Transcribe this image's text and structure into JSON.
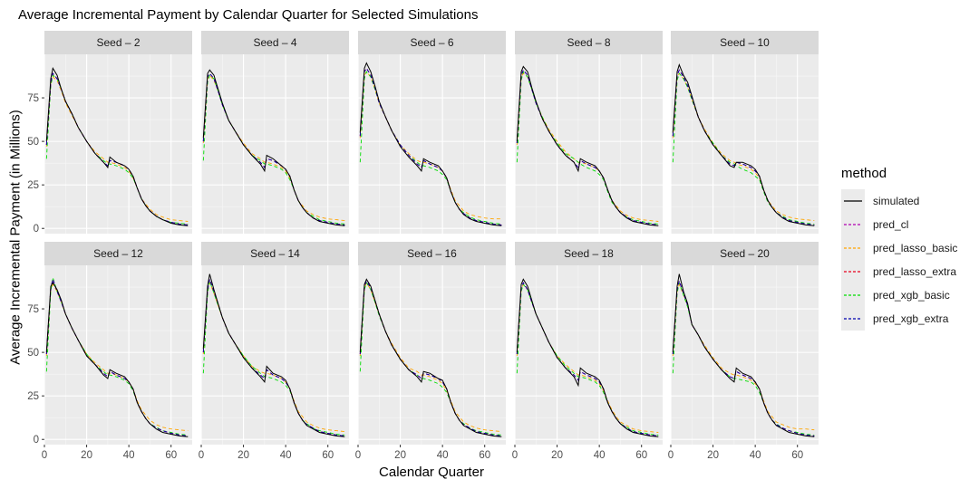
{
  "chart_data": {
    "type": "line",
    "title": "Average Incremental Payment by Calendar Quarter for Selected Simulations",
    "xlabel": "Calendar Quarter",
    "ylabel": "Average Incremental Payment (in Millions)",
    "xlim": [
      0,
      70
    ],
    "ylim": [
      -3,
      100
    ],
    "x_ticks": [
      0,
      20,
      40,
      60
    ],
    "y_ticks": [
      0,
      25,
      50,
      75
    ],
    "grid": true,
    "legend_title": "method",
    "legend_position": "right",
    "series": [
      {
        "name": "simulated",
        "color": "#000000",
        "dash": "solid"
      },
      {
        "name": "pred_cl",
        "color": "#b000b0",
        "dash": "dashed"
      },
      {
        "name": "pred_lasso_basic",
        "color": "#ffa500",
        "dash": "dashed"
      },
      {
        "name": "pred_lasso_extra",
        "color": "#e8001c",
        "dash": "dashed"
      },
      {
        "name": "pred_xgb_basic",
        "color": "#00dd00",
        "dash": "dashed"
      },
      {
        "name": "pred_xgb_extra",
        "color": "#0000b0",
        "dash": "dashed"
      }
    ],
    "x": [
      1,
      3,
      4,
      6,
      8,
      10,
      13,
      16,
      20,
      24,
      28,
      30,
      31,
      34,
      38,
      40,
      42,
      44,
      46,
      48,
      50,
      53,
      56,
      60,
      64,
      68
    ],
    "panels": [
      {
        "label": "Seed – 2",
        "simulated": [
          50,
          86,
          92,
          88,
          80,
          73,
          66,
          58,
          50,
          43,
          38,
          35,
          41,
          38,
          36,
          34,
          30,
          23,
          17,
          13,
          10,
          7,
          5,
          3,
          2,
          1.5
        ],
        "pred_cl": [
          48,
          84,
          89,
          86,
          80,
          73,
          66,
          58,
          50,
          43,
          38,
          36,
          39,
          38,
          36,
          34,
          30,
          23,
          17,
          13,
          10,
          7,
          5,
          3.5,
          2.5,
          2
        ],
        "pred_lasso_basic": [
          47,
          83,
          87,
          85,
          79,
          72,
          65,
          58,
          50,
          44,
          40,
          38,
          38,
          37,
          35,
          33,
          29,
          23,
          17,
          14,
          11,
          8,
          6.5,
          5,
          4.5,
          4
        ],
        "pred_xgb_basic": [
          40,
          82,
          88,
          86,
          80,
          73,
          66,
          58,
          50,
          43,
          39,
          37,
          37,
          36,
          34,
          32,
          29,
          23,
          17,
          13,
          10,
          7,
          5,
          3.5,
          3,
          2.5
        ]
      },
      {
        "label": "Seed – 4",
        "simulated": [
          52,
          89,
          91,
          88,
          80,
          72,
          62,
          56,
          48,
          42,
          37,
          33,
          42,
          40,
          36,
          34,
          30,
          22,
          16,
          12,
          9,
          6,
          4,
          3,
          2,
          1.5
        ],
        "pred_cl": [
          50,
          87,
          89,
          86,
          79,
          71,
          62,
          56,
          48,
          42,
          38,
          35,
          40,
          39,
          36,
          34,
          30,
          22,
          16,
          12,
          9,
          6,
          4.5,
          3.5,
          2.5,
          2
        ],
        "pred_lasso_basic": [
          49,
          86,
          88,
          85,
          79,
          71,
          62,
          56,
          49,
          43,
          40,
          38,
          38,
          37,
          35,
          33,
          29,
          22,
          16,
          13,
          10,
          8,
          6.5,
          5.5,
          5,
          4.5
        ],
        "pred_xgb_basic": [
          39,
          84,
          88,
          86,
          79,
          71,
          62,
          56,
          48,
          42,
          39,
          37,
          37,
          36,
          34,
          32,
          28,
          22,
          16,
          12,
          9,
          7,
          5,
          4,
          3,
          2.5
        ]
      },
      {
        "label": "Seed – 6",
        "simulated": [
          55,
          92,
          95,
          90,
          82,
          73,
          64,
          56,
          47,
          41,
          36,
          33,
          40,
          38,
          36,
          33,
          29,
          21,
          15,
          11,
          8,
          5.5,
          4,
          3,
          2,
          1.5
        ],
        "pred_cl": [
          53,
          90,
          92,
          88,
          81,
          72,
          64,
          56,
          48,
          42,
          37,
          35,
          39,
          37,
          35,
          33,
          29,
          21,
          15,
          11,
          8.5,
          6,
          4.5,
          3.5,
          2.5,
          2
        ],
        "pred_lasso_basic": [
          52,
          88,
          90,
          87,
          80,
          72,
          64,
          56,
          48,
          43,
          39,
          38,
          38,
          37,
          35,
          33,
          29,
          22,
          16,
          13,
          10,
          8,
          7,
          6,
          5.5,
          5.5
        ],
        "pred_xgb_basic": [
          38,
          86,
          90,
          87,
          80,
          72,
          64,
          56,
          48,
          42,
          38,
          36,
          36,
          35,
          33,
          31,
          28,
          21,
          15,
          11,
          9,
          6.5,
          5,
          4,
          3,
          2.5
        ]
      },
      {
        "label": "Seed – 8",
        "simulated": [
          50,
          90,
          93,
          90,
          81,
          73,
          63,
          56,
          48,
          42,
          38,
          33,
          40,
          38,
          36,
          33,
          29,
          22,
          16,
          12,
          9,
          6,
          4,
          3,
          2,
          1.5
        ],
        "pred_cl": [
          49,
          88,
          91,
          88,
          80,
          72,
          63,
          56,
          48,
          42,
          38,
          35,
          39,
          37,
          35,
          33,
          29,
          22,
          16,
          12,
          9,
          6.5,
          4.5,
          3.5,
          2.5,
          2
        ],
        "pred_lasso_basic": [
          48,
          87,
          89,
          87,
          80,
          72,
          64,
          57,
          50,
          44,
          40,
          38,
          38,
          37,
          35,
          33,
          29,
          22,
          16,
          13,
          10,
          7.5,
          6,
          5,
          4.5,
          4
        ],
        "pred_xgb_basic": [
          38,
          85,
          90,
          87,
          80,
          72,
          64,
          56,
          49,
          43,
          40,
          38,
          37,
          35,
          33,
          31,
          28,
          21,
          15,
          12,
          9,
          6.5,
          5,
          4,
          3,
          2.5
        ]
      },
      {
        "label": "Seed – 10",
        "simulated": [
          55,
          90,
          94,
          88,
          84,
          76,
          64,
          56,
          48,
          42,
          36,
          35,
          38,
          38,
          36,
          34,
          30,
          22,
          16,
          12,
          9,
          6,
          4,
          3,
          2,
          1.5
        ],
        "pred_cl": [
          53,
          88,
          91,
          87,
          82,
          75,
          64,
          56,
          48,
          42,
          37,
          36,
          38,
          37,
          35,
          33,
          30,
          22,
          16,
          12,
          9,
          6.5,
          4.5,
          3.5,
          2.5,
          2
        ],
        "pred_lasso_basic": [
          52,
          87,
          89,
          86,
          81,
          74,
          64,
          57,
          49,
          43,
          39,
          38,
          37,
          36,
          34,
          32,
          29,
          22,
          16,
          13,
          10,
          8,
          6.5,
          5.5,
          5,
          4.5
        ],
        "pred_xgb_basic": [
          38,
          85,
          89,
          86,
          81,
          74,
          64,
          56,
          49,
          42,
          38,
          37,
          36,
          34,
          32,
          30,
          28,
          21,
          15,
          12,
          9,
          7,
          5,
          4,
          3,
          2.5
        ]
      },
      {
        "label": "Seed – 12",
        "simulated": [
          50,
          88,
          90,
          86,
          80,
          72,
          64,
          57,
          48,
          43,
          37,
          35,
          40,
          38,
          36,
          33,
          29,
          21,
          16,
          12,
          9,
          6,
          4,
          3,
          2,
          1.5
        ],
        "pred_cl": [
          49,
          87,
          92,
          85,
          79,
          72,
          64,
          57,
          48,
          43,
          38,
          36,
          39,
          37,
          35,
          33,
          29,
          21,
          16,
          12,
          9,
          6.5,
          5,
          3.5,
          2.5,
          2
        ],
        "pred_lasso_basic": [
          48,
          86,
          89,
          85,
          79,
          72,
          64,
          57,
          49,
          44,
          40,
          38,
          38,
          37,
          35,
          33,
          29,
          22,
          17,
          14,
          11,
          8.5,
          7,
          6,
          5.5,
          5
        ],
        "pred_xgb_basic": [
          39,
          85,
          93,
          85,
          79,
          72,
          64,
          57,
          49,
          43,
          39,
          37,
          37,
          36,
          34,
          32,
          28,
          21,
          16,
          12,
          9,
          7,
          5,
          4,
          3,
          2.5
        ]
      },
      {
        "label": "Seed – 14",
        "simulated": [
          52,
          88,
          95,
          86,
          78,
          70,
          61,
          55,
          47,
          41,
          36,
          33,
          42,
          38,
          36,
          34,
          29,
          21,
          15,
          11,
          8,
          6,
          4,
          3,
          2,
          1.5
        ],
        "pred_cl": [
          50,
          86,
          92,
          85,
          78,
          70,
          61,
          55,
          47,
          41,
          37,
          35,
          40,
          37,
          35,
          33,
          29,
          21,
          15,
          11,
          8.5,
          6.5,
          4.5,
          3.5,
          2.5,
          2
        ],
        "pred_lasso_basic": [
          49,
          85,
          90,
          84,
          77,
          70,
          61,
          55,
          48,
          42,
          39,
          38,
          38,
          37,
          35,
          33,
          29,
          22,
          16,
          13,
          10,
          8,
          6.5,
          5.5,
          5,
          4.5
        ],
        "pred_xgb_basic": [
          38,
          84,
          91,
          84,
          77,
          70,
          61,
          55,
          48,
          42,
          38,
          36,
          36,
          35,
          33,
          31,
          28,
          21,
          15,
          11,
          9,
          6.5,
          5,
          4,
          3,
          2.5
        ]
      },
      {
        "label": "Seed – 16",
        "simulated": [
          50,
          89,
          92,
          88,
          80,
          72,
          62,
          54,
          46,
          40,
          36,
          33,
          39,
          38,
          35,
          34,
          29,
          21,
          15,
          11,
          8,
          6,
          4,
          3,
          2,
          1.5
        ],
        "pred_cl": [
          49,
          88,
          91,
          87,
          80,
          72,
          62,
          54,
          46,
          40,
          37,
          35,
          38,
          37,
          35,
          33,
          29,
          21,
          15,
          11,
          8.5,
          6.5,
          4.5,
          3.5,
          2.5,
          2
        ],
        "pred_lasso_basic": [
          48,
          87,
          90,
          86,
          79,
          72,
          62,
          55,
          47,
          41,
          39,
          37,
          37,
          36,
          34,
          32,
          28,
          22,
          16,
          13,
          10,
          8,
          6.5,
          5.5,
          5,
          4.5
        ],
        "pred_xgb_basic": [
          39,
          86,
          90,
          86,
          79,
          71,
          62,
          54,
          46,
          40,
          37,
          35,
          35,
          34,
          32,
          30,
          27,
          21,
          15,
          11,
          9,
          6.5,
          5,
          4,
          3,
          2.5
        ]
      },
      {
        "label": "Seed – 18",
        "simulated": [
          50,
          89,
          92,
          88,
          80,
          72,
          64,
          56,
          47,
          41,
          36,
          31,
          41,
          38,
          36,
          34,
          29,
          21,
          16,
          12,
          9,
          6,
          4,
          3,
          2,
          1.5
        ],
        "pred_cl": [
          49,
          87,
          90,
          86,
          79,
          72,
          64,
          56,
          47,
          41,
          37,
          34,
          39,
          37,
          35,
          33,
          29,
          21,
          16,
          12,
          9,
          6.5,
          4.5,
          3.5,
          2.5,
          2
        ],
        "pred_lasso_basic": [
          48,
          86,
          89,
          86,
          79,
          72,
          64,
          56,
          48,
          43,
          39,
          37,
          37,
          36,
          34,
          32,
          28,
          22,
          17,
          13,
          10,
          8,
          6,
          5,
          4.5,
          4
        ],
        "pred_xgb_basic": [
          38,
          85,
          89,
          86,
          79,
          72,
          64,
          56,
          48,
          42,
          38,
          36,
          36,
          35,
          33,
          31,
          27,
          21,
          16,
          12,
          9,
          7,
          5,
          4,
          3,
          2.5
        ]
      },
      {
        "label": "Seed – 20",
        "simulated": [
          50,
          88,
          95,
          85,
          78,
          66,
          60,
          53,
          46,
          40,
          35,
          33,
          41,
          38,
          36,
          33,
          29,
          21,
          15,
          11,
          8,
          6,
          4,
          3,
          2,
          1.5
        ],
        "pred_cl": [
          49,
          86,
          91,
          84,
          77,
          66,
          60,
          53,
          46,
          40,
          36,
          35,
          39,
          37,
          35,
          33,
          29,
          21,
          15,
          11,
          8.5,
          6.5,
          5,
          3.5,
          2.5,
          2
        ],
        "pred_lasso_basic": [
          48,
          85,
          89,
          83,
          77,
          66,
          60,
          54,
          47,
          41,
          38,
          37,
          37,
          36,
          34,
          32,
          29,
          22,
          16,
          13,
          10,
          8.5,
          7,
          6,
          6,
          5.5
        ],
        "pred_xgb_basic": [
          38,
          84,
          90,
          83,
          76,
          66,
          60,
          53,
          46,
          40,
          36,
          35,
          35,
          34,
          33,
          31,
          27,
          21,
          15,
          11,
          9,
          6.5,
          5,
          4,
          3,
          2.5
        ]
      }
    ]
  }
}
